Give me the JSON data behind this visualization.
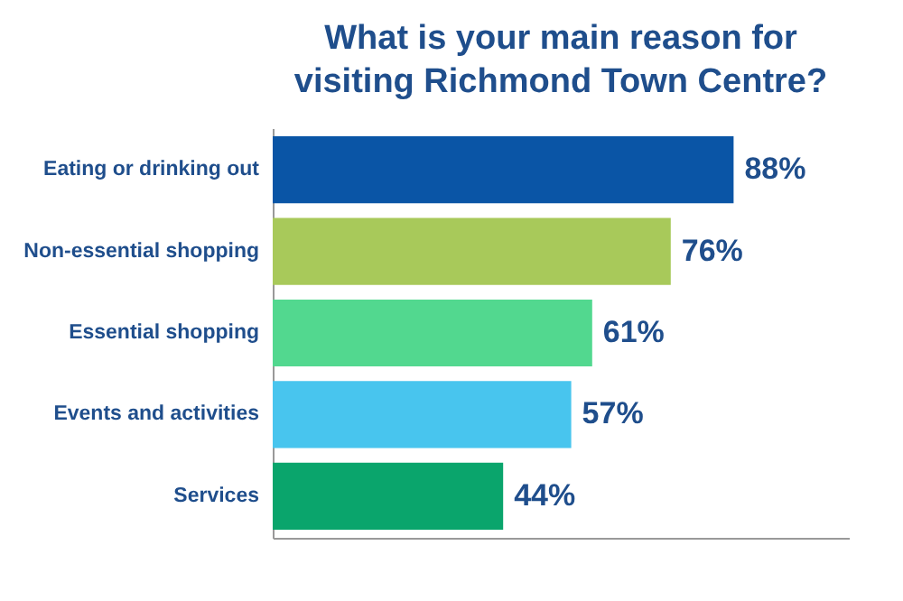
{
  "chart_data": {
    "type": "bar",
    "orientation": "horizontal",
    "title": "What is your main reason for visiting Richmond Town Centre?",
    "categories": [
      "Eating or drinking out",
      "Non-essential shopping",
      "Essential shopping",
      "Events and activities",
      "Services"
    ],
    "values": [
      88,
      76,
      61,
      57,
      44
    ],
    "colors": [
      "#0a55a6",
      "#a8c95a",
      "#52d88f",
      "#48c5ee",
      "#0aa56c"
    ],
    "value_labels": [
      "88%",
      "76%",
      "61%",
      "57%",
      "44%"
    ],
    "xlim": [
      0,
      110
    ],
    "tick_labels": "y",
    "grid": false
  }
}
